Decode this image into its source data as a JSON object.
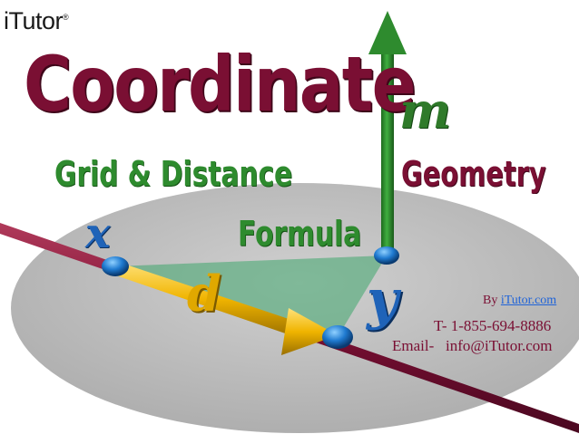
{
  "logo": {
    "text": "iTutor",
    "registered": "®"
  },
  "title": "Coordinate",
  "subtitle_left": "Grid & Distance",
  "subtitle_formula": "Formula",
  "subtitle_right": "Geometry",
  "labels": {
    "m": "m",
    "x": "x",
    "d": "d",
    "y": "y"
  },
  "contact": {
    "by_prefix": "By",
    "by_link": "iTutor.com",
    "phone": "T- 1-855-694-8886",
    "email": "Email-   info@iTutor.com"
  },
  "colors": {
    "maroon": "#7a0f33",
    "green": "#2e8b2e",
    "blue": "#1f63b8",
    "gold": "#e0a800",
    "plane": "#bcbcbc"
  }
}
